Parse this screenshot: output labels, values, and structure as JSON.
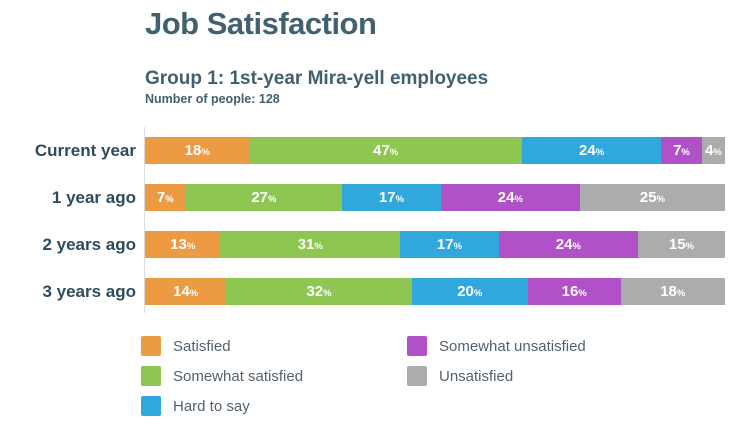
{
  "header": {
    "title": "Job Satisfaction",
    "subtitle": "Group 1: 1st-year Mira-yell employees",
    "note": "Number of people: 128"
  },
  "chart_data": {
    "type": "bar",
    "variant": "horizontal-stacked",
    "title": "Job Satisfaction",
    "subtitle": "Group 1: 1st-year Mira-yell employees",
    "sample_note": "Number of people: 128",
    "unit": "%",
    "xlim": [
      0,
      100
    ],
    "grid": false,
    "legend_position": "bottom",
    "categories": [
      "Current year",
      "1 year ago",
      "2 years ago",
      "3 years ago"
    ],
    "series": [
      {
        "name": "Satisfied",
        "color": "#EC9B43",
        "values": [
          18,
          7,
          13,
          14
        ]
      },
      {
        "name": "Somewhat satisfied",
        "color": "#8DC651",
        "values": [
          47,
          27,
          31,
          32
        ]
      },
      {
        "name": "Hard to say",
        "color": "#30A8DE",
        "values": [
          24,
          17,
          17,
          20
        ]
      },
      {
        "name": "Somewhat unsatisfied",
        "color": "#B151C8",
        "values": [
          7,
          24,
          24,
          16
        ]
      },
      {
        "name": "Unsatisfied",
        "color": "#ABACAE",
        "values": [
          4,
          25,
          15,
          18
        ]
      }
    ]
  },
  "colors": {
    "heading_text": "#42606F",
    "category_label_text": "#2D4B5C",
    "legend_text": "#54626E",
    "axis_line": "#DBDBDB",
    "bar_value_text": "#FFFFFF"
  }
}
